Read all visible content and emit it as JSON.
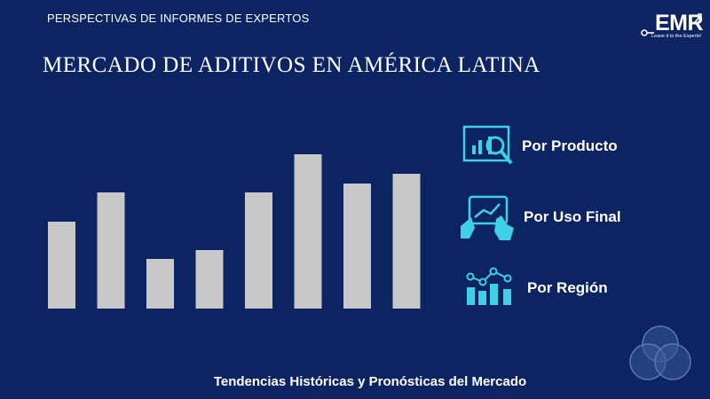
{
  "header": {
    "top_label": "PERSPECTIVAS DE INFORMES DE EXPERTOS",
    "title": "MERCADO DE ADITIVOS EN AMÉRICA LATINA"
  },
  "logo": {
    "text": "EMR",
    "tagline": "Leave it to the Experts!"
  },
  "legend": [
    {
      "label": "Por Producto",
      "icon": "magnifier-chart-icon"
    },
    {
      "label": "Por Uso Final",
      "icon": "touch-tablet-icon"
    },
    {
      "label": "Por Región",
      "icon": "bar-network-icon"
    }
  ],
  "footer": {
    "text": "Tendencias Históricas y Pronósticas del Mercado"
  },
  "colors": {
    "background": "#0c2462",
    "bar": "#c8c8c8",
    "accent": "#3fd0e8"
  },
  "chart_data": {
    "type": "bar",
    "categories": [
      "",
      "",
      "",
      "",
      "",
      "",
      "",
      ""
    ],
    "values": [
      98,
      131,
      56,
      66,
      131,
      174,
      141,
      152
    ],
    "title": "",
    "xlabel": "",
    "ylabel": "",
    "ylim": [
      0,
      174
    ],
    "grid": false
  }
}
